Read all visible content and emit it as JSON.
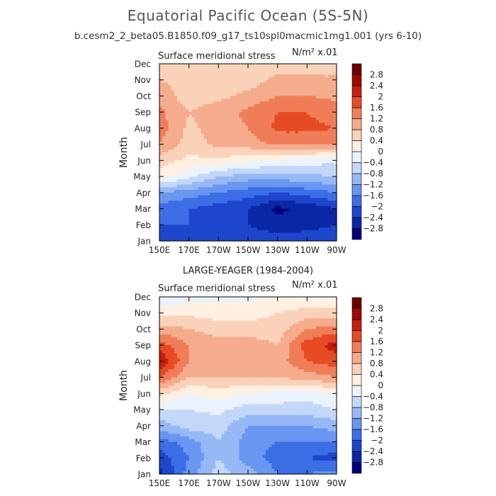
{
  "title": "Equatorial Pacific Ocean (5S-5N)",
  "subtitle": "b.cesm2_2_beta05.B1850.f09_g17_ts10spl0macmic1mg1.001 (yrs 6-10)",
  "units_label": "N/m² x.01",
  "chart_data": [
    {
      "type": "heatmap",
      "name": "model",
      "title": "Surface meridional stress",
      "header": "",
      "xlabel": "",
      "ylabel": "Month",
      "x_ticks": [
        "150E",
        "170E",
        "170W",
        "150W",
        "130W",
        "110W",
        "90W"
      ],
      "x_values": [
        150,
        170,
        190,
        210,
        230,
        250,
        270
      ],
      "y_ticks": [
        "Jan",
        "Feb",
        "Mar",
        "Apr",
        "May",
        "Jun",
        "Jul",
        "Aug",
        "Sep",
        "Oct",
        "Nov",
        "Dec"
      ],
      "xlim": [
        150,
        270
      ],
      "colorbar_levels": [
        -2.8,
        -2.4,
        -2,
        -1.6,
        -1.2,
        -0.8,
        -0.4,
        0,
        0.4,
        0.8,
        1.2,
        1.6,
        2,
        2.4,
        2.8
      ],
      "colorbar_labels": [
        "2.8",
        "2.4",
        "2",
        "1.6",
        "1.2",
        "0.8",
        "0.4",
        "0",
        "-0.4",
        "-0.8",
        "-1.2",
        "-1.6",
        "-2",
        "-2.4",
        "-2.8"
      ],
      "colors": [
        "#00007d",
        "#0a28a5",
        "#1e46cd",
        "#3c6ee6",
        "#6996f0",
        "#96b9f5",
        "#c3d7fa",
        "#ebf3ff",
        "#fff0e1",
        "#fad2b9",
        "#f5ac8c",
        "#f07d58",
        "#e64b23",
        "#c81e0a",
        "#a00a00",
        "#6e0000"
      ],
      "values": [
        [
          -2.0,
          -2.1,
          -2.2,
          -2.2,
          -2.2,
          -2.1,
          -2.0
        ],
        [
          -2.0,
          -2.0,
          -2.2,
          -2.4,
          -2.6,
          -2.6,
          -2.4
        ],
        [
          -1.8,
          -2.0,
          -2.2,
          -2.4,
          -2.9,
          -2.7,
          -2.4
        ],
        [
          -1.2,
          -1.4,
          -1.6,
          -1.8,
          -2.0,
          -1.8,
          -1.6
        ],
        [
          0.2,
          -0.3,
          -0.8,
          -1.0,
          -1.0,
          -0.9,
          -0.8
        ],
        [
          0.6,
          0.3,
          0.3,
          0.1,
          -0.1,
          -0.2,
          -0.3
        ],
        [
          1.2,
          0.6,
          0.9,
          1.0,
          1.3,
          1.3,
          1.2
        ],
        [
          1.4,
          0.7,
          1.0,
          1.2,
          1.7,
          1.7,
          1.6
        ],
        [
          1.3,
          0.8,
          1.0,
          1.3,
          1.6,
          1.6,
          1.4
        ],
        [
          1.0,
          0.6,
          0.7,
          0.9,
          1.2,
          1.2,
          1.1
        ],
        [
          0.8,
          0.7,
          0.6,
          0.6,
          0.9,
          0.9,
          0.9
        ],
        [
          0.6,
          0.6,
          0.5,
          0.4,
          0.6,
          0.5,
          0.5
        ]
      ]
    },
    {
      "type": "heatmap",
      "name": "observations",
      "title": "Surface meridional stress",
      "header": "LARGE-YEAGER (1984-2004)",
      "xlabel": "",
      "ylabel": "Month",
      "x_ticks": [
        "150E",
        "170E",
        "170W",
        "150W",
        "130W",
        "110W",
        "90W"
      ],
      "x_values": [
        150,
        170,
        190,
        210,
        230,
        250,
        270
      ],
      "y_ticks": [
        "Jan",
        "Feb",
        "Mar",
        "Apr",
        "May",
        "Jun",
        "Jul",
        "Aug",
        "Sep",
        "Oct",
        "Nov",
        "Dec"
      ],
      "xlim": [
        150,
        270
      ],
      "colorbar_levels": [
        -2.8,
        -2.4,
        -2,
        -1.6,
        -1.2,
        -0.8,
        -0.4,
        0,
        0.4,
        0.8,
        1.2,
        1.6,
        2,
        2.4,
        2.8
      ],
      "colorbar_labels": [
        "2.8",
        "2.4",
        "2",
        "1.6",
        "1.2",
        "0.8",
        "0.4",
        "0",
        "-0.4",
        "-0.8",
        "-1.2",
        "-1.6",
        "-2",
        "-2.4",
        "-2.8"
      ],
      "colors": [
        "#00007d",
        "#0a28a5",
        "#1e46cd",
        "#3c6ee6",
        "#6996f0",
        "#96b9f5",
        "#c3d7fa",
        "#ebf3ff",
        "#fff0e1",
        "#fad2b9",
        "#f5ac8c",
        "#f07d58",
        "#e64b23",
        "#c81e0a",
        "#a00a00",
        "#6e0000"
      ],
      "values": [
        [
          -2.6,
          -1.4,
          -0.6,
          -1.0,
          -1.6,
          -1.6,
          -1.4
        ],
        [
          -2.2,
          -1.6,
          -0.8,
          -1.4,
          -1.8,
          -2.0,
          -2.2
        ],
        [
          -1.8,
          -1.4,
          -0.8,
          -1.4,
          -1.6,
          -1.6,
          -1.6
        ],
        [
          -1.0,
          -0.6,
          -0.6,
          -1.2,
          -1.2,
          -1.2,
          -1.0
        ],
        [
          -0.4,
          -0.4,
          -0.3,
          -0.6,
          -0.6,
          -0.6,
          -0.4
        ],
        [
          0.5,
          0.0,
          0.2,
          0.0,
          -0.1,
          -0.2,
          0.0
        ],
        [
          1.6,
          0.8,
          0.8,
          0.8,
          0.8,
          1.0,
          1.2
        ],
        [
          2.4,
          1.2,
          1.0,
          1.2,
          1.0,
          1.6,
          1.8
        ],
        [
          1.8,
          1.2,
          1.0,
          1.0,
          0.8,
          1.8,
          2.2
        ],
        [
          1.0,
          0.8,
          0.6,
          0.6,
          0.6,
          1.2,
          1.4
        ],
        [
          0.2,
          0.3,
          0.2,
          0.2,
          0.4,
          0.6,
          0.6
        ],
        [
          -0.2,
          -0.2,
          -0.1,
          -0.1,
          0.0,
          0.0,
          0.0
        ]
      ]
    }
  ]
}
